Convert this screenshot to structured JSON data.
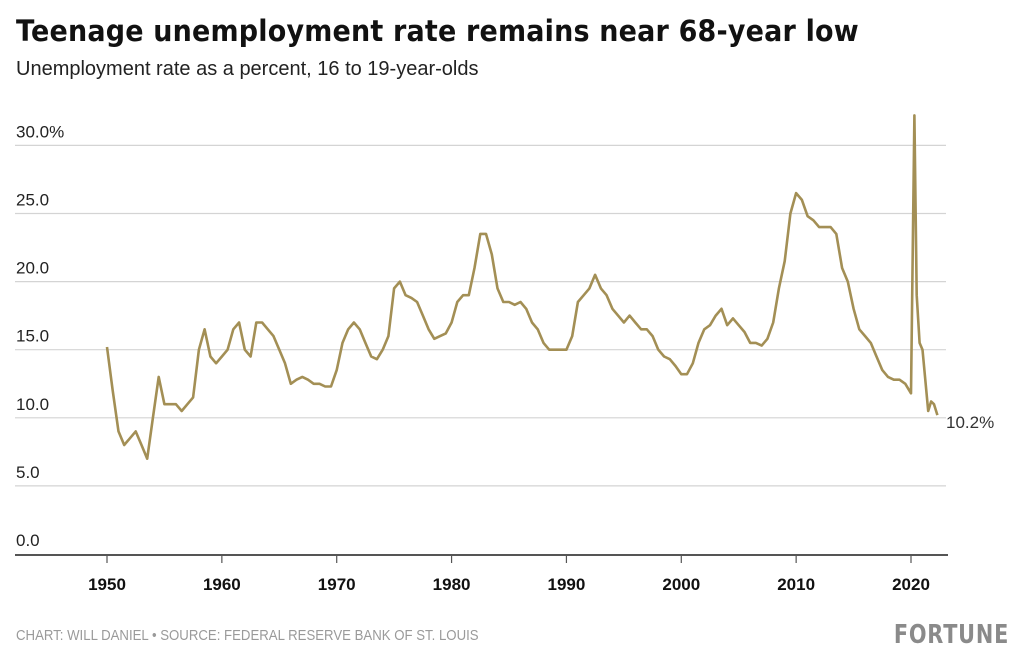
{
  "title": "Teenage unemployment rate remains near 68-year low",
  "subtitle": "Unemployment rate as a percent, 16 to 19-year-olds",
  "footer": "CHART: WILL DANIEL • SOURCE: FEDERAL RESERVE BANK OF ST. LOUIS",
  "logo": "FORTUNE",
  "chart_data": {
    "type": "line",
    "title": "Teenage unemployment rate remains near 68-year low",
    "subtitle": "Unemployment rate as a percent, 16 to 19-year-olds",
    "xlabel": "",
    "ylabel": "",
    "ylim": [
      0,
      30
    ],
    "xlim": [
      1944,
      2023.5
    ],
    "grid": true,
    "line_color": "#a38f55",
    "y_ticks": [
      {
        "value": 0,
        "label": "0.0"
      },
      {
        "value": 5,
        "label": "5.0"
      },
      {
        "value": 10,
        "label": "10.0"
      },
      {
        "value": 15,
        "label": "15.0"
      },
      {
        "value": 20,
        "label": "20.0"
      },
      {
        "value": 25,
        "label": "25.0"
      },
      {
        "value": 30,
        "label": "30.0%"
      }
    ],
    "x_ticks": [
      {
        "value": 1950,
        "label": "1950"
      },
      {
        "value": 1960,
        "label": "1960"
      },
      {
        "value": 1970,
        "label": "1970"
      },
      {
        "value": 1980,
        "label": "1980"
      },
      {
        "value": 1990,
        "label": "1990"
      },
      {
        "value": 2000,
        "label": "2000"
      },
      {
        "value": 2010,
        "label": "2010"
      },
      {
        "value": 2020,
        "label": "2020"
      }
    ],
    "end_label": "10.2%",
    "x": [
      1950,
      1950.5,
      1951,
      1951.5,
      1952,
      1952.5,
      1953,
      1953.5,
      1954,
      1954.5,
      1955,
      1955.5,
      1956,
      1956.5,
      1957,
      1957.5,
      1958,
      1958.5,
      1959,
      1959.5,
      1960,
      1960.5,
      1961,
      1961.5,
      1962,
      1962.5,
      1963,
      1963.5,
      1964,
      1964.5,
      1965,
      1965.5,
      1966,
      1966.5,
      1967,
      1967.5,
      1968,
      1968.5,
      1969,
      1969.5,
      1970,
      1970.5,
      1971,
      1971.5,
      1972,
      1972.5,
      1973,
      1973.5,
      1974,
      1974.5,
      1975,
      1975.5,
      1976,
      1976.5,
      1977,
      1977.5,
      1978,
      1978.5,
      1979,
      1979.5,
      1980,
      1980.5,
      1981,
      1981.5,
      1982,
      1982.5,
      1983,
      1983.5,
      1984,
      1984.5,
      1985,
      1985.5,
      1986,
      1986.5,
      1987,
      1987.5,
      1988,
      1988.5,
      1989,
      1989.5,
      1990,
      1990.5,
      1991,
      1991.5,
      1992,
      1992.5,
      1993,
      1993.5,
      1994,
      1994.5,
      1995,
      1995.5,
      1996,
      1996.5,
      1997,
      1997.5,
      1998,
      1998.5,
      1999,
      1999.5,
      2000,
      2000.5,
      2001,
      2001.5,
      2002,
      2002.5,
      2003,
      2003.5,
      2004,
      2004.5,
      2005,
      2005.5,
      2006,
      2006.5,
      2007,
      2007.5,
      2008,
      2008.5,
      2009,
      2009.5,
      2010,
      2010.5,
      2011,
      2011.5,
      2012,
      2012.5,
      2013,
      2013.5,
      2014,
      2014.5,
      2015,
      2015.5,
      2016,
      2016.5,
      2017,
      2017.5,
      2018,
      2018.5,
      2019,
      2019.5,
      2020,
      2020.3,
      2020.5,
      2020.75,
      2021,
      2021.5,
      2021.75,
      2022,
      2022.3
    ],
    "y": [
      15.2,
      12,
      9,
      8,
      8.5,
      9,
      8,
      7,
      10,
      13,
      11,
      11,
      11,
      10.5,
      11,
      11.5,
      15,
      16.5,
      14.5,
      14,
      14.5,
      15,
      16.5,
      17,
      15,
      14.5,
      17,
      17,
      16.5,
      16,
      15,
      14,
      12.5,
      12.8,
      13,
      12.8,
      12.5,
      12.5,
      12.3,
      12.3,
      13.5,
      15.5,
      16.5,
      17,
      16.5,
      15.5,
      14.5,
      14.3,
      15,
      16,
      19.5,
      20,
      19,
      18.8,
      18.5,
      17.5,
      16.5,
      15.8,
      16,
      16.2,
      17,
      18.5,
      19,
      19,
      21,
      23.5,
      23.5,
      22,
      19.5,
      18.5,
      18.5,
      18.3,
      18.5,
      18,
      17,
      16.5,
      15.5,
      15,
      15,
      15,
      15,
      16,
      18.5,
      19,
      19.5,
      20.5,
      19.5,
      19,
      18,
      17.5,
      17,
      17.5,
      17,
      16.5,
      16.5,
      16,
      15,
      14.5,
      14.3,
      13.8,
      13.2,
      13.2,
      14,
      15.5,
      16.5,
      16.8,
      17.5,
      18,
      16.8,
      17.3,
      16.8,
      16.3,
      15.5,
      15.5,
      15.3,
      15.8,
      17,
      19.5,
      21.5,
      25,
      26.5,
      26,
      24.8,
      24.5,
      24,
      24,
      24,
      23.5,
      21,
      20,
      18,
      16.5,
      16,
      15.5,
      14.5,
      13.5,
      13,
      12.8,
      12.8,
      12.5,
      11.8,
      32.2,
      19,
      15.5,
      15,
      10.5,
      11.2,
      11,
      10.2
    ]
  }
}
